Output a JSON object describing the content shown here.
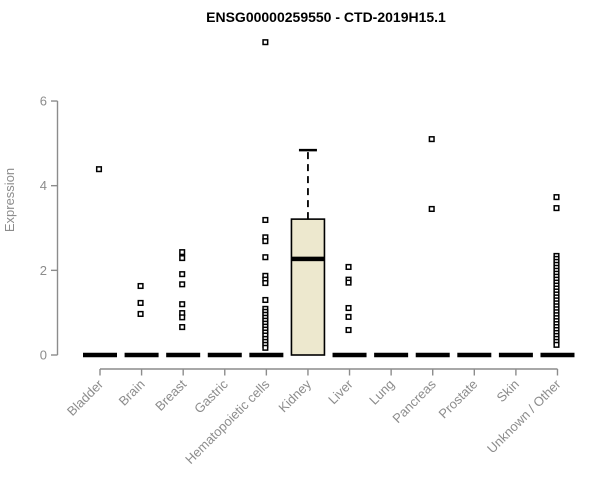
{
  "title": "ENSG00000259550 - CTD-2019H15.1",
  "chart_data": {
    "type": "boxplot",
    "title": "ENSG00000259550 - CTD-2019H15.1",
    "xlabel": "",
    "ylabel": "Expression",
    "ylim": [
      0,
      6
    ],
    "yticks": [
      0,
      2,
      4,
      6
    ],
    "grid": false,
    "legend": "none",
    "categories": [
      "Bladder",
      "Brain",
      "Breast",
      "Gastric",
      "Hematopoietic cells",
      "Kidney",
      "Liver",
      "Lung",
      "Pancreas",
      "Prostate",
      "Skin",
      "Unknown / Other"
    ],
    "colors": {
      "box_fill": "#EDE8CE",
      "box_stroke": "#000000",
      "median": "#000000",
      "zero_bar": "#000000",
      "outlier_stroke": "#000000",
      "outlier_fill": "#ffffff",
      "axis": "#8C8C8C",
      "tick_label": "#8C8C8C",
      "title": "#000000"
    },
    "series": [
      {
        "label": "Bladder",
        "q1": 0,
        "median": 0,
        "q3": 0,
        "whisker_low": 0,
        "whisker_high": 0,
        "outliers": [
          4.39
        ]
      },
      {
        "label": "Brain",
        "q1": 0,
        "median": 0,
        "q3": 0,
        "whisker_low": 0,
        "whisker_high": 0,
        "outliers": [
          1.63,
          1.23,
          0.97
        ]
      },
      {
        "label": "Breast",
        "q1": 0,
        "median": 0,
        "q3": 0,
        "whisker_low": 0,
        "whisker_high": 0,
        "outliers": [
          2.43,
          2.29,
          1.91,
          1.67,
          1.2,
          0.99,
          0.89,
          0.66
        ]
      },
      {
        "label": "Gastric",
        "q1": 0,
        "median": 0,
        "q3": 0,
        "whisker_low": 0,
        "whisker_high": 0,
        "outliers": []
      },
      {
        "label": "Hematopoietic cells",
        "q1": 0,
        "median": 0,
        "q3": 0,
        "whisker_low": 0,
        "whisker_high": 0,
        "outliers": [
          7.39,
          3.19,
          2.78,
          2.69,
          2.31,
          1.87,
          1.78,
          1.7,
          1.3,
          1.09,
          1.02,
          0.95,
          0.88,
          0.81,
          0.74,
          0.67,
          0.6,
          0.53,
          0.46,
          0.38,
          0.31,
          0.24,
          0.17
        ]
      },
      {
        "label": "Kidney",
        "q1": 0,
        "median": 2.27,
        "q3": 3.21,
        "whisker_low": 0,
        "whisker_high": 4.84,
        "outliers": []
      },
      {
        "label": "Liver",
        "q1": 0,
        "median": 0,
        "q3": 0,
        "whisker_low": 0,
        "whisker_high": 0,
        "outliers": [
          2.08,
          1.78,
          1.71,
          1.11,
          0.9,
          0.59
        ]
      },
      {
        "label": "Lung",
        "q1": 0,
        "median": 0,
        "q3": 0,
        "whisker_low": 0,
        "whisker_high": 0,
        "outliers": []
      },
      {
        "label": "Pancreas",
        "q1": 0,
        "median": 0,
        "q3": 0,
        "whisker_low": 0,
        "whisker_high": 0,
        "outliers": [
          5.1,
          3.45
        ]
      },
      {
        "label": "Prostate",
        "q1": 0,
        "median": 0,
        "q3": 0,
        "whisker_low": 0,
        "whisker_high": 0,
        "outliers": []
      },
      {
        "label": "Skin",
        "q1": 0,
        "median": 0,
        "q3": 0,
        "whisker_low": 0,
        "whisker_high": 0,
        "outliers": []
      },
      {
        "label": "Unknown / Other",
        "q1": 0,
        "median": 0,
        "q3": 0,
        "whisker_low": 0,
        "whisker_high": 0,
        "outliers": [
          3.73,
          3.47,
          2.34,
          2.27,
          2.2,
          2.13,
          2.06,
          1.99,
          1.92,
          1.85,
          1.78,
          1.71,
          1.64,
          1.57,
          1.5,
          1.43,
          1.36,
          1.29,
          1.22,
          1.15,
          1.08,
          1.01,
          0.94,
          0.87,
          0.8,
          0.73,
          0.66,
          0.59,
          0.52,
          0.45,
          0.38,
          0.31,
          0.24
        ]
      }
    ]
  }
}
